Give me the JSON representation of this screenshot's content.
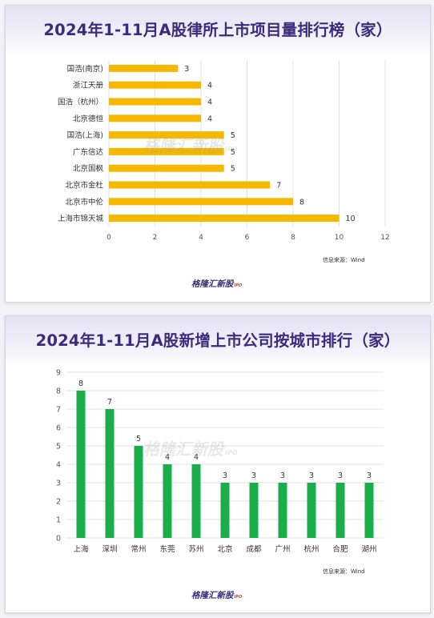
{
  "charts": [
    {
      "title": "2024年1-11月A股律所上市项目量排行榜（家）",
      "source": "信息来源：Wind",
      "logo": "格隆汇新股",
      "logo_suffix": "IPO",
      "watermark": "格隆汇新股",
      "watermark_suffix": "IPO",
      "bar_color": "#F5B800"
    },
    {
      "title": "2024年1-11月A股新增上市公司按城市排行（家）",
      "source": "信息来源：Wind",
      "logo": "格隆汇新股",
      "logo_suffix": "IPO",
      "watermark": "格隆汇新股",
      "watermark_suffix": "IPO",
      "bar_color": "#1AAE4A"
    }
  ],
  "chart_data": [
    {
      "type": "bar",
      "orientation": "horizontal",
      "title": "2024年1-11月A股律所上市项目量排行榜（家）",
      "categories": [
        "国浩(南京)",
        "浙江天册",
        "国浩（杭州）",
        "北京德恒",
        "国浩(上海)",
        "广东信达",
        "北京国枫",
        "北京市金杜",
        "北京市中伦",
        "上海市锦天城"
      ],
      "values": [
        3,
        4,
        4,
        4,
        5,
        5,
        5,
        7,
        8,
        10
      ],
      "xlim": [
        0,
        12
      ],
      "x_ticks": [
        0,
        2,
        4,
        6,
        8,
        10,
        12
      ],
      "grid": true,
      "data_labels": true,
      "color": "#F5B800"
    },
    {
      "type": "bar",
      "orientation": "vertical",
      "title": "2024年1-11月A股新增上市公司按城市排行（家）",
      "categories": [
        "上海",
        "深圳",
        "常州",
        "东莞",
        "苏州",
        "北京",
        "成都",
        "广州",
        "杭州",
        "合肥",
        "湖州"
      ],
      "values": [
        8,
        7,
        5,
        4,
        4,
        3,
        3,
        3,
        3,
        3,
        3
      ],
      "ylim": [
        0,
        9
      ],
      "y_ticks": [
        0,
        1,
        2,
        3,
        4,
        5,
        6,
        7,
        8,
        9
      ],
      "grid": true,
      "data_labels": true,
      "color": "#1AAE4A"
    }
  ]
}
